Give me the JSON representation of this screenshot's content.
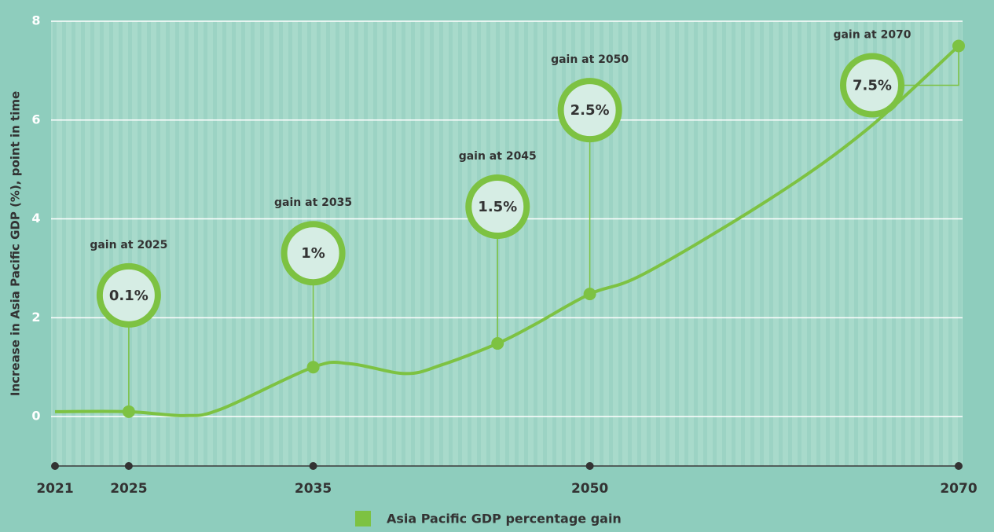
{
  "chart_data": {
    "type": "line",
    "y_label": "Increase in Asia Pacific GDP (%), point in time",
    "xlim": [
      2021,
      2070
    ],
    "xticks": [
      2021,
      2025,
      2035,
      2050,
      2070
    ],
    "ylim": [
      -1,
      8
    ],
    "yticks": [
      0,
      2,
      4,
      6,
      8
    ],
    "grid": true,
    "legend": "bottom",
    "series": [
      {
        "name": "Asia Pacific GDP percentage gain",
        "color": "#7dc242",
        "x": [
          2021,
          2025,
          2028,
          2030,
          2035,
          2037,
          2040,
          2042,
          2045,
          2047,
          2050,
          2053,
          2060,
          2065,
          2070
        ],
        "values": [
          0.1,
          0.1,
          0.02,
          0.15,
          1.0,
          1.07,
          0.87,
          1.05,
          1.48,
          1.86,
          2.48,
          2.9,
          4.46,
          5.8,
          7.5
        ]
      }
    ],
    "annotations": [
      {
        "x": 2025,
        "value": 0.1,
        "title": "gain at 2025",
        "label": "0.1%"
      },
      {
        "x": 2035,
        "value": 1.0,
        "title": "gain at 2035",
        "label": "1%"
      },
      {
        "x": 2045,
        "value": 1.48,
        "title": "gain at 2045",
        "label": "1.5%"
      },
      {
        "x": 2050,
        "value": 2.48,
        "title": "gain at 2050",
        "label": "2.5%"
      },
      {
        "x": 2070,
        "value": 7.5,
        "title": "gain at 2070",
        "label": "7.5%"
      }
    ]
  }
}
